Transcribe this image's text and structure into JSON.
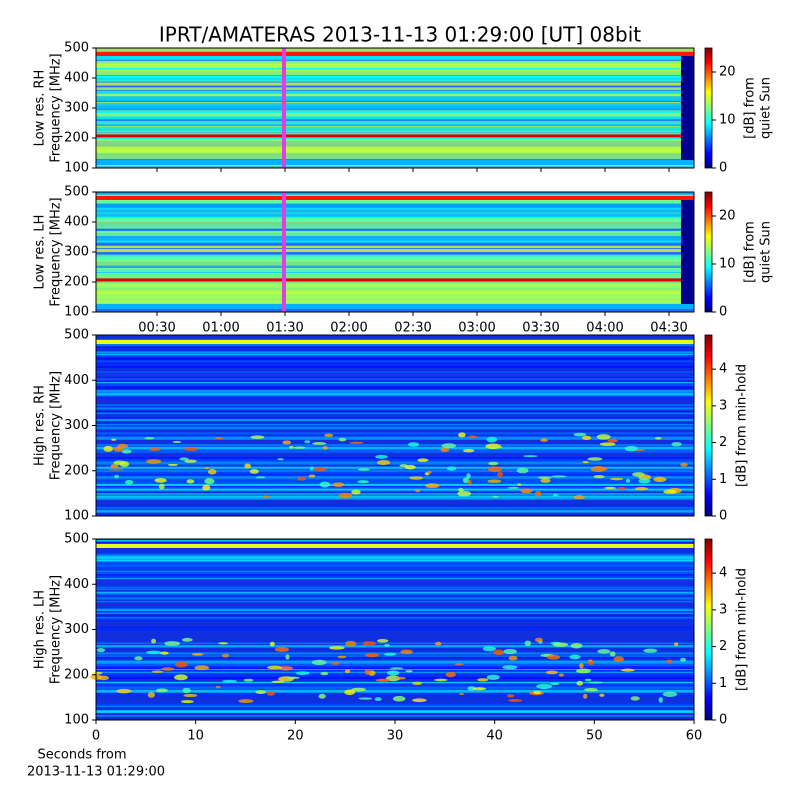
{
  "chart_data": [
    {
      "type": "heatmap",
      "title": "IPRT/AMATERAS 2013-11-13 01:29:00 [UT]   08bit",
      "ylabel": [
        "Low res. RH",
        "Frequency [MHz]"
      ],
      "colorbar_label": [
        "[dB] from",
        "quiet Sun"
      ],
      "ylim": [
        100,
        500
      ],
      "yticks": [
        100,
        200,
        300,
        400,
        500
      ],
      "clim": [
        0,
        25
      ],
      "cticks": [
        0,
        10,
        20
      ]
    },
    {
      "type": "heatmap",
      "ylabel": [
        "Low res. LH",
        "Frequency [MHz]"
      ],
      "colorbar_label": [
        "[dB] from",
        "quiet Sun"
      ],
      "ylim": [
        100,
        500
      ],
      "yticks": [
        100,
        200,
        300,
        400,
        500
      ],
      "clim": [
        0,
        25
      ],
      "cticks": [
        0,
        10,
        20
      ],
      "xlim": [
        1.4,
        281.7
      ],
      "xticks": [
        {
          "value": 30,
          "label": "00:30"
        },
        {
          "value": 60,
          "label": "01:00"
        },
        {
          "value": 90,
          "label": "01:30"
        },
        {
          "value": 120,
          "label": "02:00"
        },
        {
          "value": 150,
          "label": "02:30"
        },
        {
          "value": 180,
          "label": "03:00"
        },
        {
          "value": 210,
          "label": "03:30"
        },
        {
          "value": 240,
          "label": "04:00"
        },
        {
          "value": 270,
          "label": "04:30"
        }
      ]
    },
    {
      "type": "heatmap",
      "ylabel": [
        "High res. RH",
        "Frequency [MHz]"
      ],
      "colorbar_label": [
        "[dB] from min-hold"
      ],
      "ylim": [
        100,
        500
      ],
      "yticks": [
        100,
        200,
        300,
        400,
        500
      ],
      "clim": [
        0,
        4.93
      ],
      "cticks": [
        0,
        1,
        2,
        3,
        4
      ]
    },
    {
      "type": "heatmap",
      "ylabel": [
        "High res. LH",
        "Frequency [MHz]"
      ],
      "colorbar_label": [
        "[dB] from min-hold"
      ],
      "ylim": [
        100,
        500
      ],
      "yticks": [
        100,
        200,
        300,
        400,
        500
      ],
      "clim": [
        0,
        4.93
      ],
      "cticks": [
        0,
        1,
        2,
        3,
        4
      ],
      "xlim": [
        0,
        60
      ],
      "xticks": [
        0,
        10,
        20,
        30,
        40,
        50,
        60
      ],
      "xlabel": [
        "Seconds from",
        "2013-11-13 01:29:00"
      ]
    }
  ]
}
